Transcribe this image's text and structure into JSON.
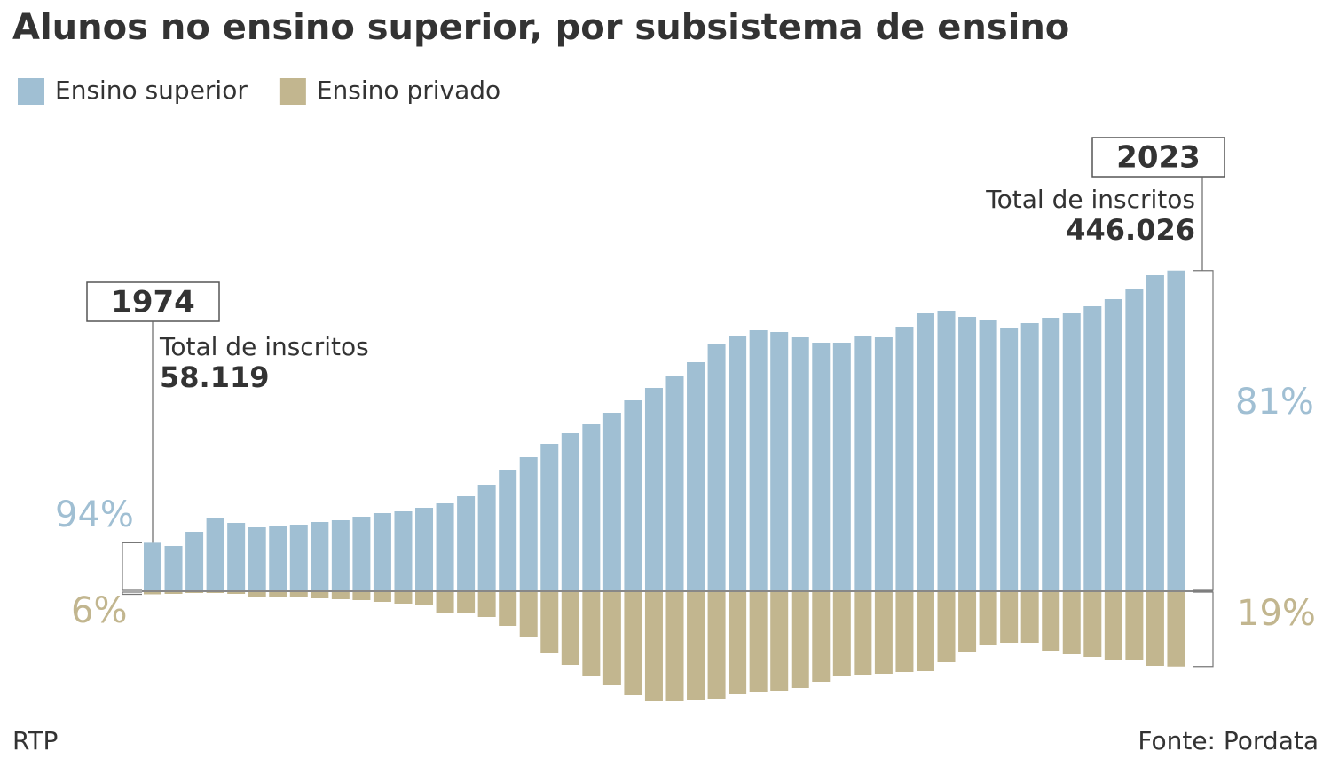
{
  "chart_data": {
    "type": "diverging-bar",
    "title": "Alunos no ensino superior, por subsistema de ensino",
    "categories": [
      "1974",
      null,
      null,
      null,
      null,
      null,
      null,
      null,
      null,
      null,
      null,
      null,
      null,
      null,
      null,
      null,
      null,
      null,
      null,
      null,
      null,
      null,
      null,
      null,
      null,
      null,
      null,
      null,
      null,
      null,
      null,
      null,
      null,
      null,
      null,
      null,
      null,
      null,
      null,
      null,
      null,
      null,
      null,
      null,
      null,
      null,
      null,
      null,
      null,
      "2023"
    ],
    "series": [
      {
        "name": "Ensino superior",
        "color": "#a0bfd3",
        "values": [
          54632,
          51000,
          67000,
          82000,
          77000,
          72000,
          73000,
          75000,
          78000,
          80000,
          84000,
          88000,
          90000,
          94000,
          99000,
          107000,
          120000,
          136000,
          151000,
          166000,
          178000,
          188000,
          201000,
          215000,
          229000,
          242000,
          258000,
          278000,
          288000,
          294000,
          292000,
          286000,
          280000,
          280000,
          288000,
          286000,
          298000,
          313000,
          316000,
          309000,
          306000,
          297000,
          302000,
          308000,
          313000,
          321000,
          329000,
          341000,
          356000,
          361281
        ]
      },
      {
        "name": "Ensino privado",
        "color": "#c2b68f",
        "values": [
          3487,
          3000,
          2000,
          2000,
          3000,
          6000,
          7000,
          7000,
          8000,
          9000,
          10000,
          12000,
          14000,
          16000,
          24000,
          25000,
          29000,
          39000,
          52000,
          70000,
          83000,
          96000,
          106000,
          117000,
          124000,
          124000,
          122000,
          121000,
          116000,
          114000,
          112000,
          109000,
          102000,
          96000,
          94000,
          93000,
          91000,
          90000,
          80000,
          69000,
          61000,
          58000,
          58000,
          67000,
          71000,
          74000,
          77000,
          78000,
          84000,
          84745
        ]
      }
    ],
    "annotations": [
      {
        "text": "Total de inscritos",
        "total": "58.119",
        "share_top": "94%",
        "share_bottom": "6%"
      },
      {
        "text": "Total de inscritos",
        "total": "446.026",
        "share_top": "81%",
        "share_bottom": "19%"
      }
    ],
    "source_left": "RTP",
    "source_right": "Fonte: Pordata"
  }
}
